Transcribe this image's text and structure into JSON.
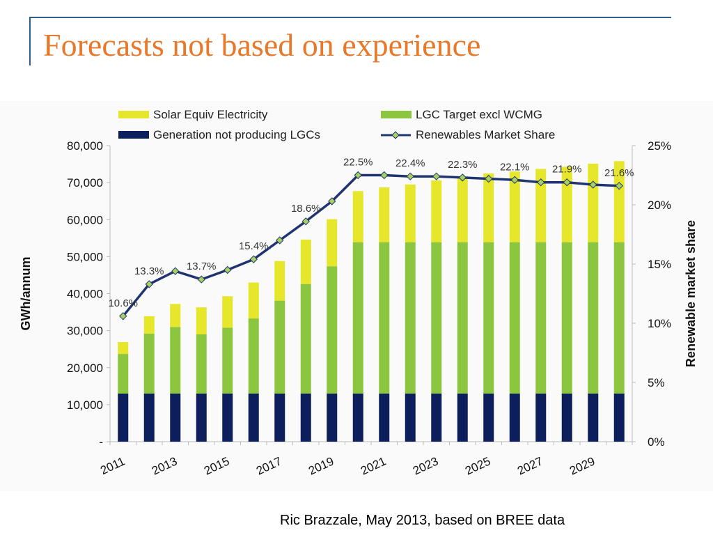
{
  "slide": {
    "title": "Forecasts not based on experience",
    "source_note": "Ric Brazzale, May 2013, based on BREE data"
  },
  "colors": {
    "title": "#e8782a",
    "rule": "#2e5f8a",
    "solar": "#e6e62a",
    "lgc": "#8cc63f",
    "generation": "#0c1f5c",
    "share_line": "#1f3470",
    "share_marker": "#a8d060"
  },
  "chart_data": {
    "type": "bar",
    "stacked": true,
    "categories": [
      "2011",
      "2012",
      "2013",
      "2014",
      "2015",
      "2016",
      "2017",
      "2018",
      "2019",
      "2020",
      "2021",
      "2022",
      "2023",
      "2024",
      "2025",
      "2026",
      "2027",
      "2028",
      "2029",
      "2030"
    ],
    "x_tick_labels": [
      "2011",
      "2013",
      "2015",
      "2017",
      "2019",
      "2021",
      "2023",
      "2025",
      "2027",
      "2029"
    ],
    "ylabel": "GWh/annum",
    "ylabel_right": "Renewable market share",
    "ylim": [
      0,
      80000
    ],
    "y_ticks": [
      "-",
      "10,000",
      "20,000",
      "30,000",
      "40,000",
      "50,000",
      "60,000",
      "70,000",
      "80,000"
    ],
    "y2lim": [
      0,
      25
    ],
    "y2_ticks": [
      "0%",
      "5%",
      "10%",
      "15%",
      "20%",
      "25%"
    ],
    "legend_position": "top",
    "series": [
      {
        "name": "Generation not producing LGCs",
        "kind": "bar",
        "color_key": "generation",
        "values": [
          13000,
          13000,
          13000,
          13000,
          13000,
          13000,
          13000,
          13000,
          13000,
          13000,
          13000,
          13000,
          13000,
          13000,
          13000,
          13000,
          13000,
          13000,
          13000,
          13000
        ]
      },
      {
        "name": "LGC Target excl WCMG",
        "kind": "bar",
        "color_key": "lgc",
        "values": [
          10700,
          16200,
          18000,
          16000,
          17800,
          20300,
          25100,
          29600,
          34400,
          40900,
          40900,
          40900,
          40900,
          40900,
          40900,
          40900,
          40900,
          40900,
          40900,
          40900
        ]
      },
      {
        "name": "Solar Equiv Electricity",
        "kind": "bar",
        "color_key": "solar",
        "values": [
          3200,
          4700,
          6200,
          7300,
          8500,
          9700,
          10700,
          12000,
          12700,
          13800,
          14800,
          15600,
          16700,
          17700,
          18600,
          19100,
          19800,
          20400,
          21200,
          21900
        ]
      },
      {
        "name": "Renewables Market Share",
        "kind": "line",
        "axis": "right",
        "color_key": "share_line",
        "values": [
          10.6,
          13.3,
          14.4,
          13.7,
          14.5,
          15.4,
          17.0,
          18.6,
          20.3,
          22.5,
          22.5,
          22.4,
          22.4,
          22.3,
          22.2,
          22.1,
          21.9,
          21.9,
          21.7,
          21.6
        ]
      }
    ],
    "data_labels": [
      {
        "index": 0,
        "text": "10.6%"
      },
      {
        "index": 1,
        "text": "13.3%"
      },
      {
        "index": 3,
        "text": "13.7%"
      },
      {
        "index": 5,
        "text": "15.4%"
      },
      {
        "index": 7,
        "text": "18.6%"
      },
      {
        "index": 9,
        "text": "22.5%"
      },
      {
        "index": 11,
        "text": "22.4%"
      },
      {
        "index": 13,
        "text": "22.3%"
      },
      {
        "index": 15,
        "text": "22.1%"
      },
      {
        "index": 17,
        "text": "21.9%"
      },
      {
        "index": 19,
        "text": "21.6%"
      }
    ]
  }
}
